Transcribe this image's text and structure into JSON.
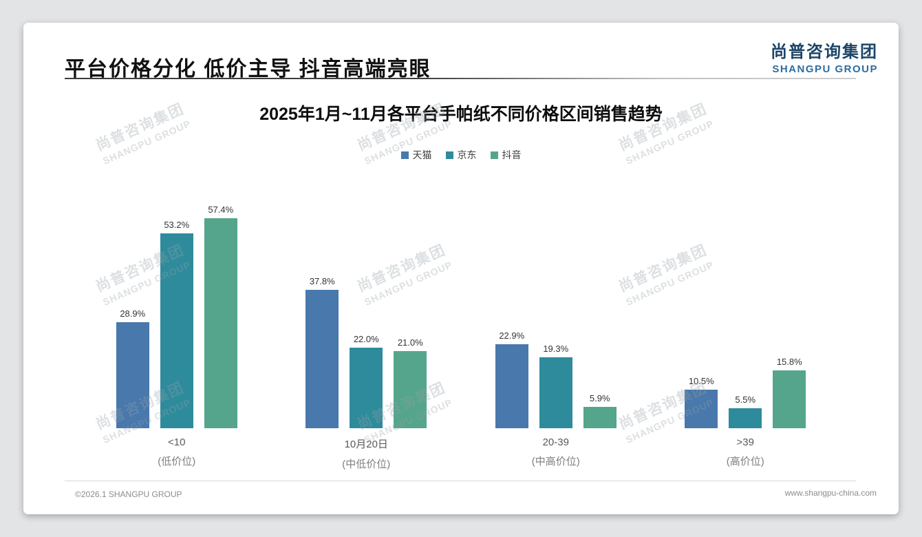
{
  "page": {
    "title": "平台价格分化 低价主导 抖音高端亮眼",
    "logo": {
      "cn": "尚普咨询集团",
      "en": "SHANGPU GROUP"
    },
    "watermark": {
      "cn": "尚普咨询集团",
      "en": "SHANGPU GROUP"
    },
    "footer": {
      "left": "©2026.1 SHANGPU GROUP",
      "right": "www.shangpu-china.com"
    }
  },
  "chart_data": {
    "type": "bar",
    "title": "2025年1月~11月各平台手帕纸不同价格区间销售趋势",
    "categories": [
      "<10",
      "10月20日",
      "20-39",
      ">39"
    ],
    "category_subtitles": [
      "(低价位)",
      "(中低价位)",
      "(中高价位)",
      "(高价位)"
    ],
    "series": [
      {
        "name": "天猫",
        "color": "#4878ac",
        "values": [
          28.9,
          37.8,
          22.9,
          10.5
        ]
      },
      {
        "name": "京东",
        "color": "#2e8b9c",
        "values": [
          53.2,
          22.0,
          19.3,
          5.5
        ]
      },
      {
        "name": "抖音",
        "color": "#54a58b",
        "values": [
          57.4,
          21.0,
          5.9,
          15.8
        ]
      }
    ],
    "value_suffix": "%",
    "ylim": [
      0,
      60
    ],
    "grid": false,
    "legend_position": "top"
  }
}
